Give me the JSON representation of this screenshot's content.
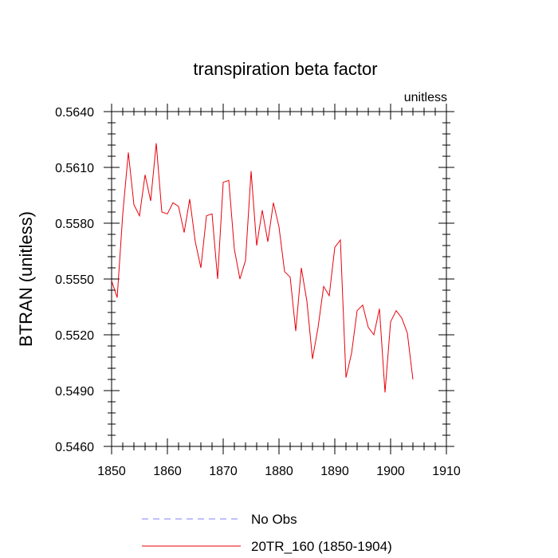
{
  "chart_data": {
    "type": "line",
    "title": "transpiration beta factor",
    "units_label": "unitless",
    "xlabel": "",
    "ylabel": "BTRAN  (unitless)",
    "xlim": [
      1850,
      1910
    ],
    "ylim": [
      0.546,
      0.564
    ],
    "x_ticks": [
      1850,
      1860,
      1870,
      1880,
      1890,
      1900,
      1910
    ],
    "y_ticks": [
      "0.5460",
      "0.5490",
      "0.5520",
      "0.5550",
      "0.5580",
      "0.5610",
      "0.5640"
    ],
    "grid": false,
    "legend_position": "bottom",
    "series": [
      {
        "name": "No Obs",
        "color": "#8080ff",
        "dash": "dashed",
        "x": [],
        "y": []
      },
      {
        "name": "20TR_160 (1850-1904)",
        "color": "#e8000b",
        "dash": "solid",
        "x": [
          1850,
          1851,
          1852,
          1853,
          1854,
          1855,
          1856,
          1857,
          1858,
          1859,
          1860,
          1861,
          1862,
          1863,
          1864,
          1865,
          1866,
          1867,
          1868,
          1869,
          1870,
          1871,
          1872,
          1873,
          1874,
          1875,
          1876,
          1877,
          1878,
          1879,
          1880,
          1881,
          1882,
          1883,
          1884,
          1885,
          1886,
          1887,
          1888,
          1889,
          1890,
          1891,
          1892,
          1893,
          1894,
          1895,
          1896,
          1897,
          1898,
          1899,
          1900,
          1901,
          1902,
          1903,
          1904
        ],
        "y": [
          0.5549,
          0.554,
          0.5585,
          0.5618,
          0.559,
          0.5584,
          0.5606,
          0.5592,
          0.5623,
          0.5586,
          0.5585,
          0.5591,
          0.5589,
          0.5575,
          0.5593,
          0.557,
          0.5556,
          0.5584,
          0.5585,
          0.555,
          0.5602,
          0.5603,
          0.5566,
          0.555,
          0.556,
          0.5608,
          0.5568,
          0.5587,
          0.557,
          0.5591,
          0.5578,
          0.5554,
          0.5551,
          0.5522,
          0.5556,
          0.5538,
          0.5507,
          0.5524,
          0.5546,
          0.5541,
          0.5567,
          0.5571,
          0.5497,
          0.551,
          0.5533,
          0.5536,
          0.5524,
          0.552,
          0.5534,
          0.5489,
          0.5527,
          0.5533,
          0.5529,
          0.5521,
          0.5496
        ]
      }
    ]
  }
}
